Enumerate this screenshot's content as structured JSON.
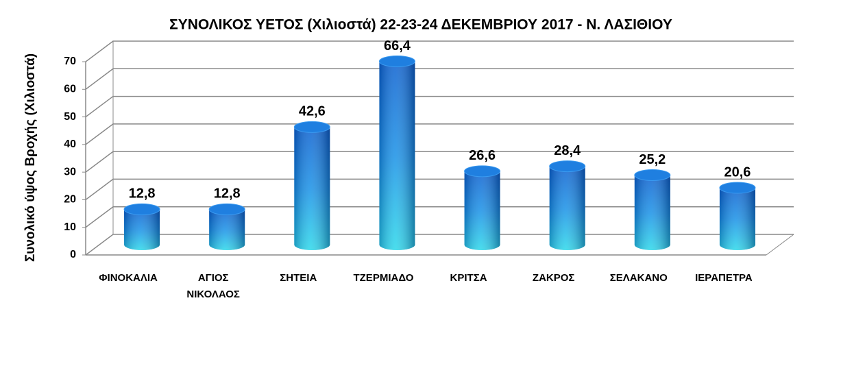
{
  "chart_data": {
    "type": "bar3d",
    "title": "ΣΥΝΟΛΙΚΟΣ ΥΕΤΟΣ (Χιλιοστά) 22-23-24 ΔΕΚΕΜΒΡΙΟΥ  2017 - Ν. ΛΑΣΙΘΙΟΥ",
    "y_label": "Συνολικό ύψος Βροχής (Χιλιοστά)",
    "categories": [
      "ΦΙΝΟΚΑΛΙΑ",
      "ΑΓΙΟΣ ΝΙΚΟΛΑΟΣ",
      "ΣΗΤΕΙΑ",
      "ΤΖΕΡΜΙΑΔΟ",
      "ΚΡΙΤΣΑ",
      "ΖΑΚΡΟΣ",
      "ΣΕΛΑΚΑΝΟ",
      "ΙΕΡΑΠΕΤΡΑ"
    ],
    "values": [
      12.8,
      12.8,
      42.6,
      66.4,
      26.6,
      28.4,
      25.2,
      20.6
    ],
    "value_labels": [
      "12,8",
      "12,8",
      "42,6",
      "66,4",
      "26,6",
      "28,4",
      "25,2",
      "20,6"
    ],
    "color": "#0a6fd8",
    "ylim": [
      0,
      70
    ],
    "yticks": [
      0,
      10,
      20,
      30,
      40,
      50,
      60,
      70
    ],
    "grid": true
  }
}
